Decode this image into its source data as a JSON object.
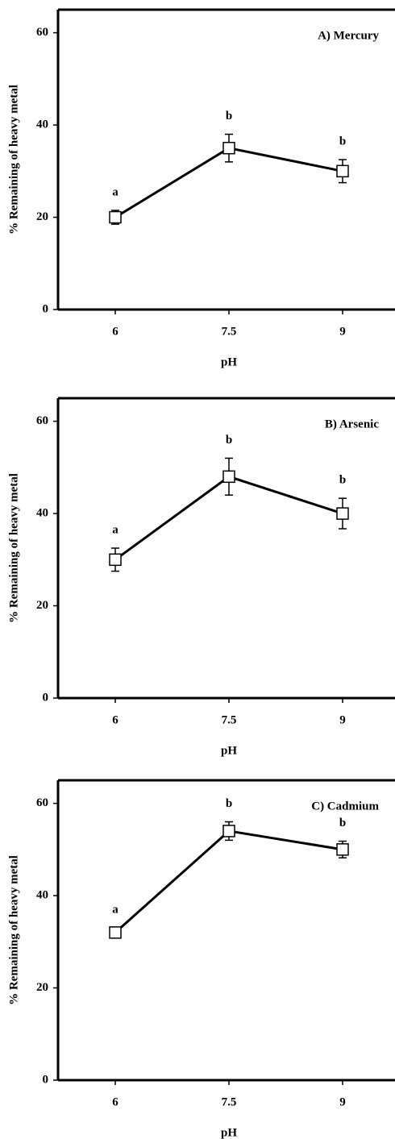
{
  "chart_data": [
    {
      "type": "line",
      "title": "A) Mercury",
      "x_label": "pH",
      "y_label": "% Remaining of heavy metal",
      "categories": [
        "6",
        "7.5",
        "9"
      ],
      "values": [
        20,
        35,
        30
      ],
      "errors": [
        1.5,
        3,
        2.5
      ],
      "group_labels": [
        "a",
        "b",
        "b"
      ],
      "color": "#000000",
      "ylim": [
        0,
        65
      ],
      "yticks": [
        0,
        20,
        40,
        60
      ]
    },
    {
      "type": "line",
      "title": "B) Arsenic",
      "x_label": "pH",
      "y_label": "% Remaining of heavy metal",
      "categories": [
        "6",
        "7.5",
        "9"
      ],
      "values": [
        30,
        48,
        40
      ],
      "errors": [
        2.5,
        4,
        3.3
      ],
      "group_labels": [
        "a",
        "b",
        "b"
      ],
      "color": "#000000",
      "ylim": [
        0,
        65
      ],
      "yticks": [
        0,
        20,
        40,
        60
      ]
    },
    {
      "type": "line",
      "title": "C) Cadmium",
      "x_label": "pH",
      "y_label": "% Remaining of heavy metal",
      "categories": [
        "6",
        "7.5",
        "9"
      ],
      "values": [
        32,
        54,
        50
      ],
      "errors": [
        1,
        2,
        1.8
      ],
      "group_labels": [
        "a",
        "b",
        "b"
      ],
      "color": "#000000",
      "ylim": [
        0,
        65
      ],
      "yticks": [
        0,
        20,
        40,
        60
      ]
    }
  ]
}
